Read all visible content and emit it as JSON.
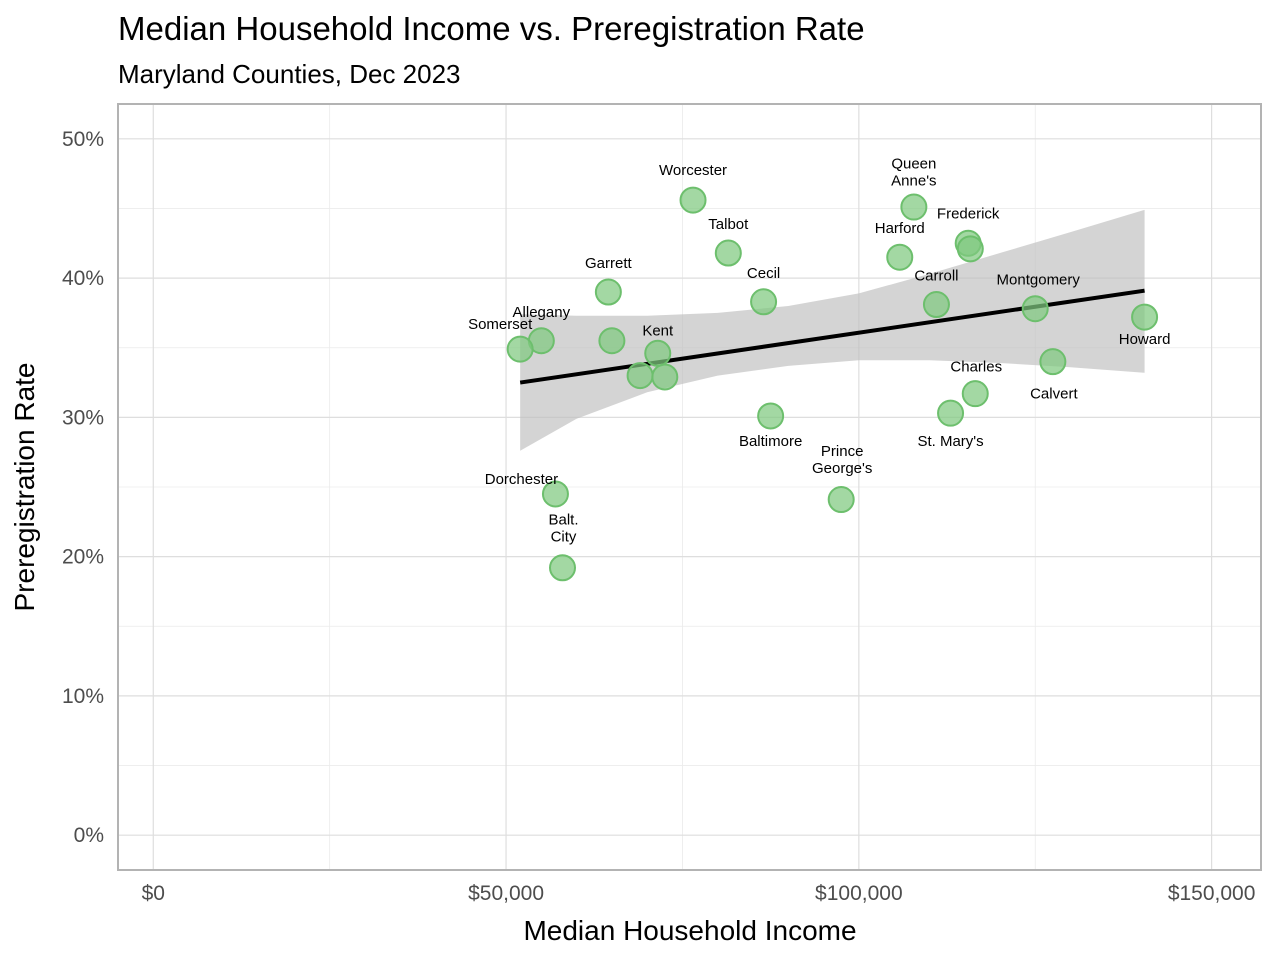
{
  "chart_data": {
    "type": "scatter",
    "title": "Median Household Income vs. Preregistration Rate",
    "subtitle": "Maryland Counties, Dec 2023",
    "xlabel": "Median Household Income",
    "ylabel": "Preregistration Rate",
    "xlim": [
      -5000,
      157000
    ],
    "ylim": [
      -0.025,
      0.525
    ],
    "x_ticks": [
      0,
      50000,
      100000,
      150000
    ],
    "x_tick_labels": [
      "$0",
      "$50,000",
      "$100,000",
      "$150,000"
    ],
    "y_ticks": [
      0,
      0.1,
      0.2,
      0.3,
      0.4,
      0.5
    ],
    "y_tick_labels": [
      "0%",
      "10%",
      "20%",
      "30%",
      "40%",
      "50%"
    ],
    "grid": true,
    "point_color": "#7fc97f",
    "trend_color": "#000000",
    "band_color": "#bdbdbd",
    "points": [
      {
        "label": "Worcester",
        "x": 76500,
        "y": 0.456
      },
      {
        "label": "Queen Anne's",
        "x": 107800,
        "y": 0.451
      },
      {
        "label": "Frederick",
        "x": 115500,
        "y": 0.425
      },
      {
        "label": "",
        "x": 115800,
        "y": 0.421
      },
      {
        "label": "Talbot",
        "x": 81500,
        "y": 0.418
      },
      {
        "label": "Harford",
        "x": 105800,
        "y": 0.415
      },
      {
        "label": "Garrett",
        "x": 64500,
        "y": 0.39
      },
      {
        "label": "Cecil",
        "x": 86500,
        "y": 0.383
      },
      {
        "label": "Carroll",
        "x": 111000,
        "y": 0.381
      },
      {
        "label": "Montgomery",
        "x": 125000,
        "y": 0.378
      },
      {
        "label": "Howard",
        "x": 140500,
        "y": 0.372
      },
      {
        "label": "Allegany",
        "x": 55000,
        "y": 0.355
      },
      {
        "label": "",
        "x": 65000,
        "y": 0.355
      },
      {
        "label": "Somerset",
        "x": 52000,
        "y": 0.349
      },
      {
        "label": "Kent",
        "x": 71500,
        "y": 0.346
      },
      {
        "label": "Calvert",
        "x": 127500,
        "y": 0.34
      },
      {
        "label": "",
        "x": 69000,
        "y": 0.33
      },
      {
        "label": "",
        "x": 72500,
        "y": 0.329
      },
      {
        "label": "Charles",
        "x": 116500,
        "y": 0.317
      },
      {
        "label": "St. Mary's",
        "x": 113000,
        "y": 0.303
      },
      {
        "label": "Baltimore",
        "x": 87500,
        "y": 0.301
      },
      {
        "label": "Dorchester",
        "x": 57000,
        "y": 0.245
      },
      {
        "label": "Prince George's",
        "x": 97500,
        "y": 0.241
      },
      {
        "label": "Balt. City",
        "x": 58000,
        "y": 0.192
      }
    ],
    "trend_line": {
      "x": [
        52000,
        140500
      ],
      "y": [
        0.325,
        0.391
      ]
    },
    "confidence_band": [
      {
        "x": 52000,
        "lower": 0.276,
        "upper": 0.374
      },
      {
        "x": 60000,
        "lower": 0.299,
        "upper": 0.373
      },
      {
        "x": 70000,
        "lower": 0.318,
        "upper": 0.373
      },
      {
        "x": 80000,
        "lower": 0.33,
        "upper": 0.375
      },
      {
        "x": 90000,
        "lower": 0.337,
        "upper": 0.38
      },
      {
        "x": 100000,
        "lower": 0.341,
        "upper": 0.389
      },
      {
        "x": 110000,
        "lower": 0.341,
        "upper": 0.403
      },
      {
        "x": 120000,
        "lower": 0.339,
        "upper": 0.418
      },
      {
        "x": 130000,
        "lower": 0.336,
        "upper": 0.433
      },
      {
        "x": 140500,
        "lower": 0.332,
        "upper": 0.449
      }
    ]
  }
}
